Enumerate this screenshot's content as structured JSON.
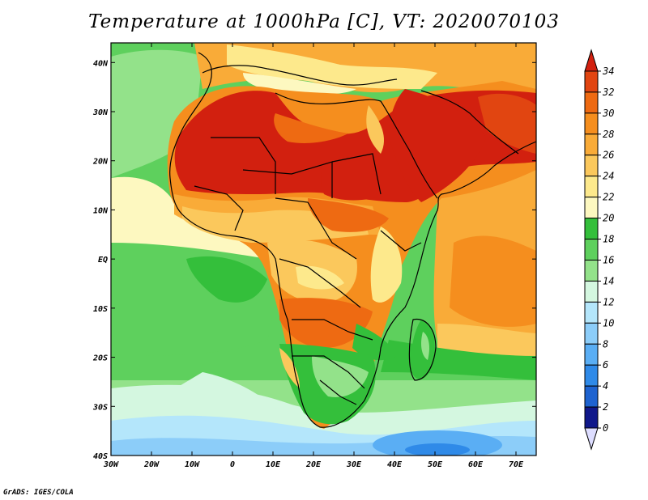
{
  "title": "Temperature at 1000hPa [C], VT: 2020070103",
  "credit": "GrADS: IGES/COLA",
  "map": {
    "lon_ticks": [
      "30W",
      "20W",
      "10W",
      "0",
      "10E",
      "20E",
      "30E",
      "40E",
      "50E",
      "60E",
      "70E"
    ],
    "lat_ticks": [
      "40N",
      "30N",
      "20N",
      "10N",
      "EQ",
      "10S",
      "20S",
      "30S",
      "40S"
    ],
    "lon_range": [
      -30,
      75
    ],
    "lat_range": [
      -40,
      44
    ]
  },
  "colorbar": {
    "labels": [
      "34",
      "32",
      "30",
      "28",
      "26",
      "24",
      "22",
      "20",
      "18",
      "16",
      "14",
      "12",
      "10",
      "8",
      "6",
      "4",
      "2",
      "0"
    ],
    "colors": [
      "#d2200f",
      "#e14511",
      "#ee6a12",
      "#f58e1e",
      "#f9ab38",
      "#fbc85c",
      "#fde98c",
      "#fdf8c0",
      "#34bf3b",
      "#5ed05d",
      "#93e28a",
      "#d4f7e0",
      "#b4e6fb",
      "#8ccdf9",
      "#5aaef4",
      "#2f8ae8",
      "#1e63d0",
      "#1b3fb4",
      "#10188a"
    ]
  }
}
